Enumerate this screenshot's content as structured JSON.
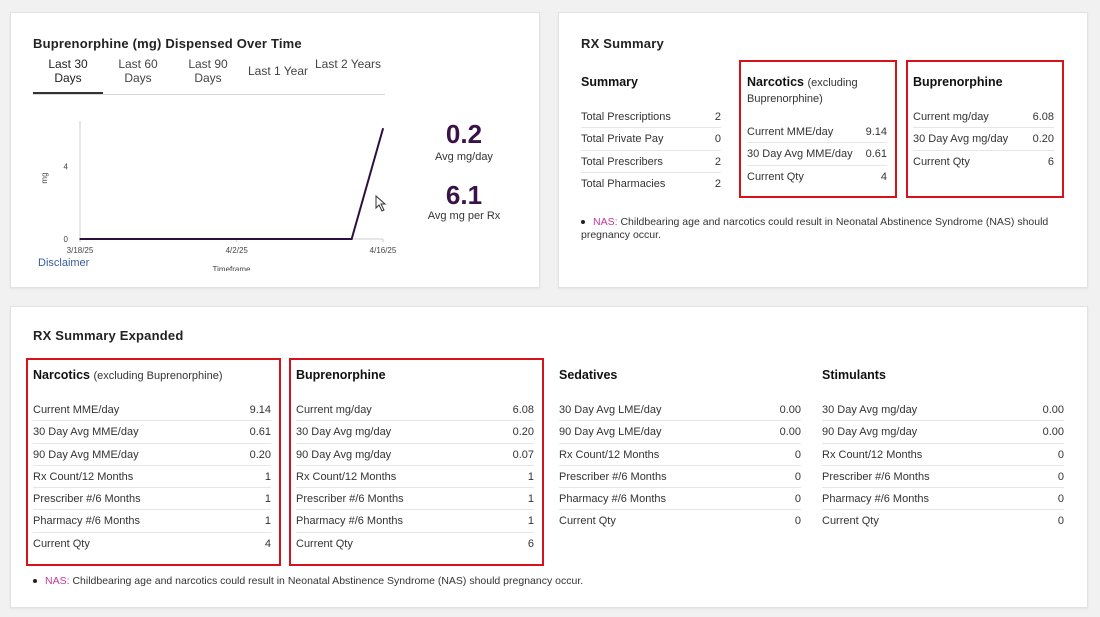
{
  "chart_card": {
    "title": "Buprenorphine (mg) Dispensed Over Time",
    "tabs": [
      "Last 30 Days",
      "Last 60 Days",
      "Last 90 Days",
      "Last 1 Year",
      "Last 2 Years"
    ],
    "active_tab": "Last 30 Days",
    "avg_mg_day_value": "0.2",
    "avg_mg_day_label": "Avg mg/day",
    "avg_mg_rx_value": "6.1",
    "avg_mg_rx_label": "Avg mg per Rx",
    "disclaimer": "Disclaimer"
  },
  "chart_data": {
    "type": "line",
    "title": "",
    "xlabel": "Timeframe",
    "ylabel": "mg",
    "x": [
      "3/18/25",
      "4/13/25",
      "4/16/25"
    ],
    "values": [
      0,
      0,
      6.08
    ],
    "x_ticks": [
      "3/18/25",
      "4/2/25",
      "4/16/25"
    ],
    "y_ticks": [
      "0",
      "4"
    ],
    "ylim": [
      0,
      6.5
    ],
    "series_color": "#2d0f3f"
  },
  "rx_summary": {
    "title": "RX Summary",
    "summary": {
      "heading": "Summary",
      "rows": [
        {
          "label": "Total Prescriptions",
          "value": "2"
        },
        {
          "label": "Total Private Pay",
          "value": "0"
        },
        {
          "label": "Total Prescribers",
          "value": "2"
        },
        {
          "label": "Total Pharmacies",
          "value": "2"
        }
      ]
    },
    "narcotics": {
      "heading": "Narcotics",
      "heading_note": "(excluding Buprenorphine)",
      "rows": [
        {
          "label": "Current MME/day",
          "value": "9.14"
        },
        {
          "label": "30 Day Avg MME/day",
          "value": "0.61"
        },
        {
          "label": "Current Qty",
          "value": "4"
        }
      ]
    },
    "buprenorphine": {
      "heading": "Buprenorphine",
      "rows": [
        {
          "label": "Current mg/day",
          "value": "6.08"
        },
        {
          "label": "30 Day Avg mg/day",
          "value": "0.20"
        },
        {
          "label": "Current Qty",
          "value": "6"
        }
      ]
    },
    "note_tag": "NAS:",
    "note_text": "Childbearing age and narcotics could result in Neonatal Abstinence Syndrome (NAS) should pregnancy occur."
  },
  "rx_expanded": {
    "title": "RX Summary Expanded",
    "narcotics": {
      "heading": "Narcotics",
      "heading_note": "(excluding Buprenorphine)",
      "rows": [
        {
          "label": "Current MME/day",
          "value": "9.14"
        },
        {
          "label": "30 Day Avg MME/day",
          "value": "0.61"
        },
        {
          "label": "90 Day Avg MME/day",
          "value": "0.20"
        },
        {
          "label": "Rx Count/12 Months",
          "value": "1"
        },
        {
          "label": "Prescriber #/6 Months",
          "value": "1"
        },
        {
          "label": "Pharmacy #/6 Months",
          "value": "1"
        },
        {
          "label": "Current Qty",
          "value": "4"
        }
      ]
    },
    "buprenorphine": {
      "heading": "Buprenorphine",
      "rows": [
        {
          "label": "Current mg/day",
          "value": "6.08"
        },
        {
          "label": "30 Day Avg mg/day",
          "value": "0.20"
        },
        {
          "label": "90 Day Avg mg/day",
          "value": "0.07"
        },
        {
          "label": "Rx Count/12 Months",
          "value": "1"
        },
        {
          "label": "Prescriber #/6 Months",
          "value": "1"
        },
        {
          "label": "Pharmacy #/6 Months",
          "value": "1"
        },
        {
          "label": "Current Qty",
          "value": "6"
        }
      ]
    },
    "sedatives": {
      "heading": "Sedatives",
      "rows": [
        {
          "label": "30 Day Avg LME/day",
          "value": "0.00"
        },
        {
          "label": "90 Day Avg LME/day",
          "value": "0.00"
        },
        {
          "label": "Rx Count/12 Months",
          "value": "0"
        },
        {
          "label": "Prescriber #/6 Months",
          "value": "0"
        },
        {
          "label": "Pharmacy #/6 Months",
          "value": "0"
        },
        {
          "label": "Current Qty",
          "value": "0"
        }
      ]
    },
    "stimulants": {
      "heading": "Stimulants",
      "rows": [
        {
          "label": "30 Day Avg mg/day",
          "value": "0.00"
        },
        {
          "label": "90 Day Avg mg/day",
          "value": "0.00"
        },
        {
          "label": "Rx Count/12 Months",
          "value": "0"
        },
        {
          "label": "Prescriber #/6 Months",
          "value": "0"
        },
        {
          "label": "Pharmacy #/6 Months",
          "value": "0"
        },
        {
          "label": "Current Qty",
          "value": "0"
        }
      ]
    },
    "note_tag": "NAS:",
    "note_text": "Childbearing age and narcotics could result in Neonatal Abstinence Syndrome (NAS) should pregnancy occur."
  }
}
